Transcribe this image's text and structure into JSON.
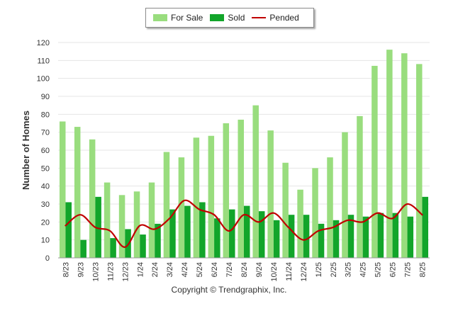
{
  "chart_data": {
    "type": "bar",
    "categories": [
      "8/23",
      "9/23",
      "10/23",
      "11/23",
      "12/23",
      "1/24",
      "2/24",
      "3/24",
      "4/24",
      "5/24",
      "6/24",
      "7/24",
      "8/24",
      "9/24",
      "10/24",
      "11/24",
      "12/24",
      "1/25",
      "2/25",
      "3/25",
      "4/25",
      "5/25",
      "6/25",
      "7/25",
      "8/25"
    ],
    "series": [
      {
        "name": "For Sale",
        "kind": "bar",
        "color": "#99dd7e",
        "values": [
          76,
          73,
          66,
          42,
          35,
          37,
          42,
          59,
          56,
          67,
          68,
          75,
          77,
          85,
          71,
          53,
          38,
          50,
          56,
          70,
          79,
          107,
          116,
          114,
          108
        ]
      },
      {
        "name": "Sold",
        "kind": "bar",
        "color": "#12a52a",
        "values": [
          31,
          10,
          34,
          11,
          16,
          13,
          19,
          27,
          29,
          31,
          22,
          27,
          29,
          26,
          21,
          24,
          24,
          19,
          21,
          24,
          23,
          25,
          25,
          23,
          34
        ]
      },
      {
        "name": "Pended",
        "kind": "line",
        "color": "#c00000",
        "values": [
          18,
          24,
          17,
          15,
          6,
          18,
          16,
          22,
          32,
          27,
          24,
          15,
          24,
          20,
          25,
          17,
          10,
          15,
          17,
          21,
          20,
          25,
          22,
          30,
          24
        ]
      }
    ],
    "ylabel": "Number of Homes",
    "xlabel": "",
    "ylim": [
      0,
      120
    ],
    "yticks": [
      0,
      10,
      20,
      30,
      40,
      50,
      60,
      70,
      80,
      90,
      100,
      110,
      120
    ],
    "grid": true,
    "legend_position": "top-center"
  },
  "footer": {
    "copyright": "Copyright © Trendgraphix, Inc."
  }
}
